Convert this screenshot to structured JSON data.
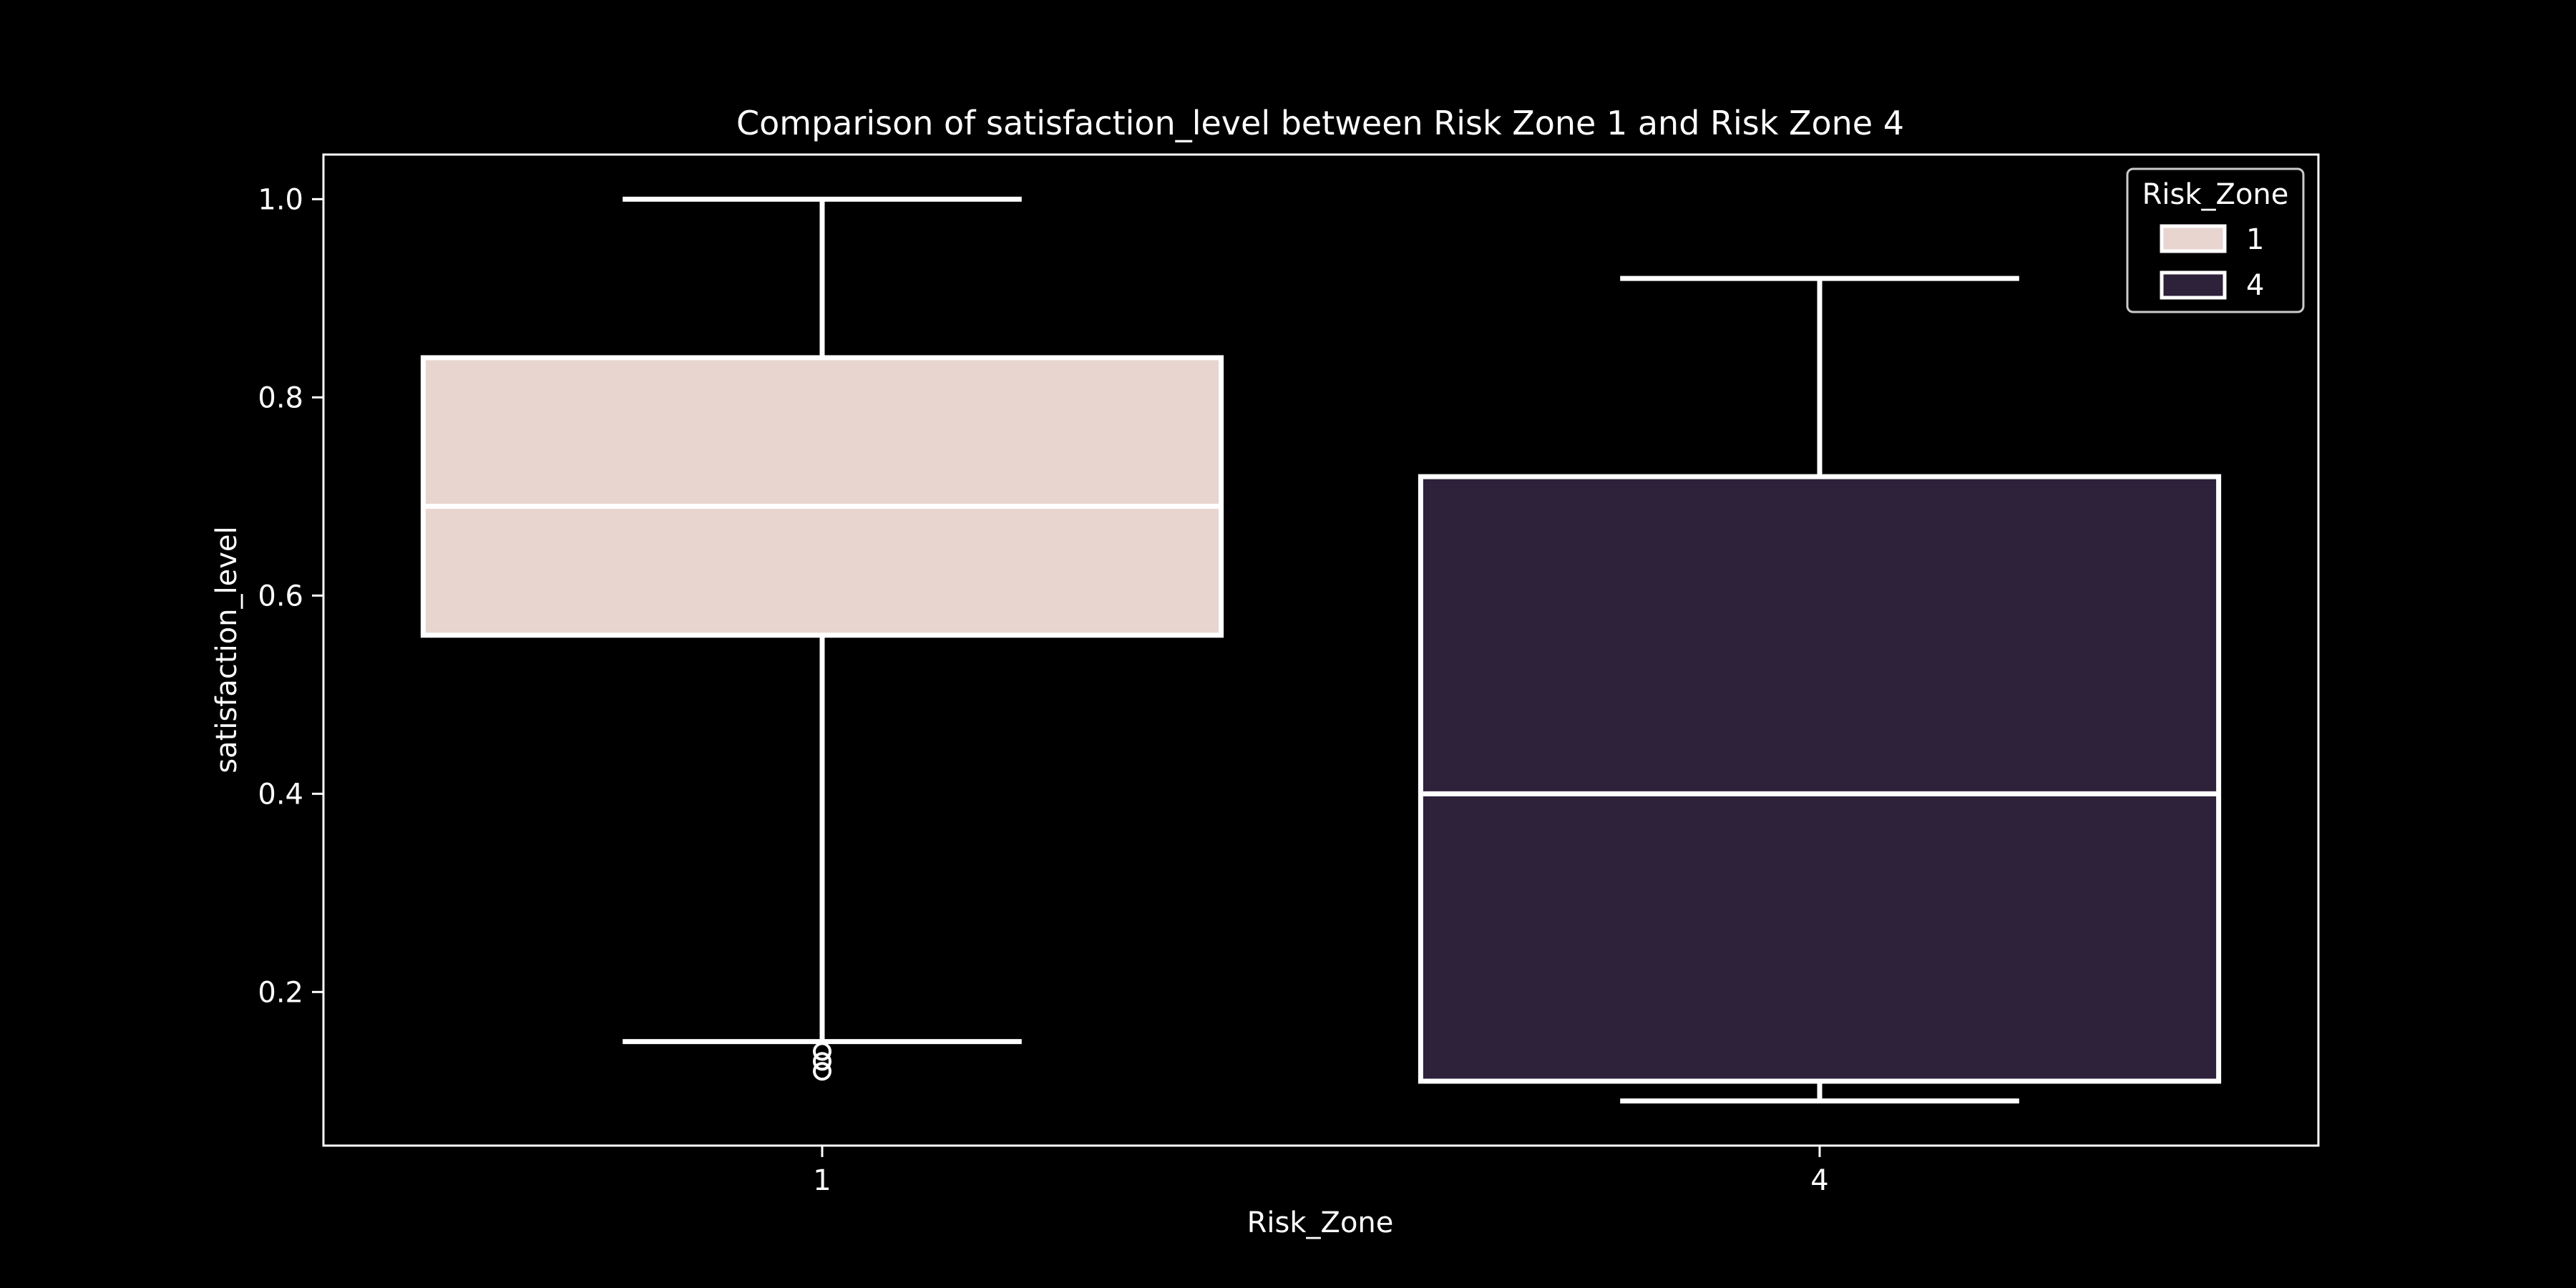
{
  "chart_data": {
    "type": "box",
    "title": "Comparison of satisfaction_level between Risk Zone 1 and Risk Zone 4",
    "xlabel": "Risk_Zone",
    "ylabel": "satisfaction_level",
    "categories": [
      "1",
      "4"
    ],
    "ylim": [
      0.045,
      1.045
    ],
    "yticks": [
      "0.2",
      "0.4",
      "0.6",
      "0.8",
      "1.0"
    ],
    "ytick_values": [
      0.2,
      0.4,
      0.6,
      0.8,
      1.0
    ],
    "grid": false,
    "legend": {
      "title": "Risk_Zone",
      "position": "top-right",
      "entries": [
        "1",
        "4"
      ]
    },
    "boxes": [
      {
        "category": "1",
        "whisker_low": 0.15,
        "q1": 0.56,
        "median": 0.69,
        "q3": 0.84,
        "whisker_high": 1.0,
        "outliers": [
          0.14,
          0.13,
          0.12
        ],
        "color": "#e8d5d0"
      },
      {
        "category": "4",
        "whisker_low": 0.09,
        "q1": 0.11,
        "median": 0.4,
        "q3": 0.72,
        "whisker_high": 0.92,
        "outliers": [],
        "color": "#2e213a"
      }
    ],
    "colors": {
      "background": "#000000",
      "foreground": "#ffffff"
    }
  }
}
